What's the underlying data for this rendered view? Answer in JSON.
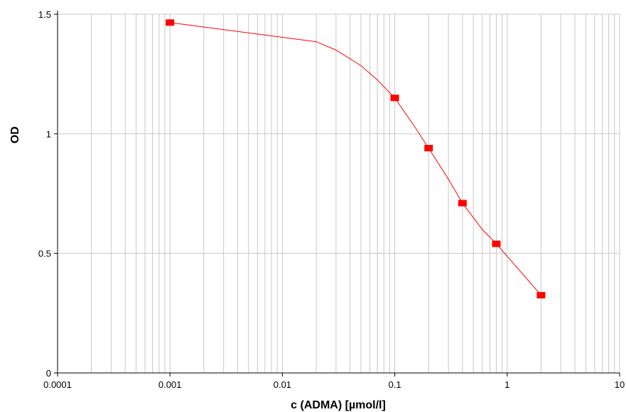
{
  "chart_data": {
    "type": "line",
    "title": "",
    "xlabel": "c (ADMA)  [µmol/l]",
    "ylabel": "OD",
    "x_scale": "log",
    "xlim": [
      0.0001,
      10
    ],
    "ylim": [
      0,
      1.5
    ],
    "x_ticks": [
      {
        "value": 0.0001,
        "label": "0.0001"
      },
      {
        "value": 0.001,
        "label": "0.001"
      },
      {
        "value": 0.01,
        "label": "0.01"
      },
      {
        "value": 0.1,
        "label": "0.1"
      },
      {
        "value": 1,
        "label": "1"
      },
      {
        "value": 10,
        "label": "10"
      }
    ],
    "y_ticks": [
      {
        "value": 0,
        "label": "0"
      },
      {
        "value": 0.5,
        "label": "0.5"
      },
      {
        "value": 1,
        "label": "1"
      },
      {
        "value": 1.5,
        "label": "1.5"
      }
    ],
    "grid": true,
    "legend": "none",
    "series": [
      {
        "color": "#ff0000",
        "marker": "square",
        "points": [
          {
            "x": 0.001,
            "y": 1.465
          },
          {
            "x": 0.1,
            "y": 1.15
          },
          {
            "x": 0.2,
            "y": 0.94
          },
          {
            "x": 0.4,
            "y": 0.71
          },
          {
            "x": 0.8,
            "y": 0.54
          },
          {
            "x": 2,
            "y": 0.325
          }
        ],
        "curve": [
          {
            "x": 0.001,
            "y": 1.465
          },
          {
            "x": 0.02,
            "y": 1.385
          },
          {
            "x": 0.03,
            "y": 1.35
          },
          {
            "x": 0.05,
            "y": 1.285
          },
          {
            "x": 0.07,
            "y": 1.225
          },
          {
            "x": 0.1,
            "y": 1.15
          },
          {
            "x": 0.15,
            "y": 1.03
          },
          {
            "x": 0.2,
            "y": 0.94
          },
          {
            "x": 0.3,
            "y": 0.81
          },
          {
            "x": 0.4,
            "y": 0.71
          },
          {
            "x": 0.6,
            "y": 0.6
          },
          {
            "x": 0.8,
            "y": 0.54
          },
          {
            "x": 1.2,
            "y": 0.445
          },
          {
            "x": 2,
            "y": 0.325
          }
        ]
      }
    ]
  }
}
